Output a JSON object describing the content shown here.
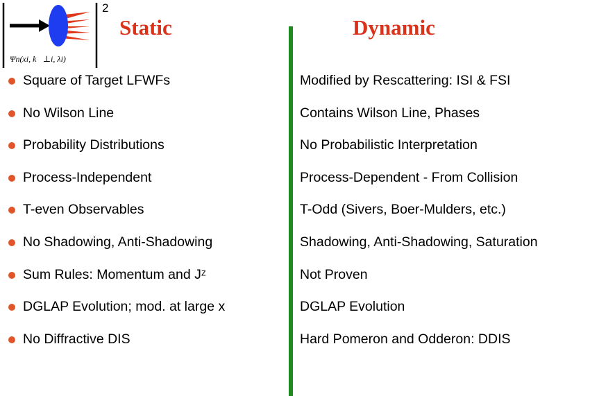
{
  "header": {
    "formula": "Ψn(xi, k⃗⊥i, λi)",
    "exponent": "2",
    "left_title": "Static",
    "right_title": "Dynamic"
  },
  "left_items": [
    "Square of Target LFWFs",
    "No Wilson Line",
    "Probability Distributions",
    "Process-Independent",
    "T-even Observables",
    "No Shadowing, Anti-Shadowing",
    "Sum Rules: Momentum and Jᶻ",
    "DGLAP Evolution; mod. at large x",
    "No Diffractive DIS"
  ],
  "right_items": [
    "Modified by Rescattering: ISI & FSI",
    "Contains Wilson Line, Phases",
    "No Probabilistic Interpretation",
    "Process-Dependent - From Collision",
    "T-Odd (Sivers, Boer-Mulders, etc.)",
    "Shadowing, Anti-Shadowing, Saturation",
    "Not Proven",
    "DGLAP Evolution",
    "Hard Pomeron and Odderon: DDIS"
  ]
}
